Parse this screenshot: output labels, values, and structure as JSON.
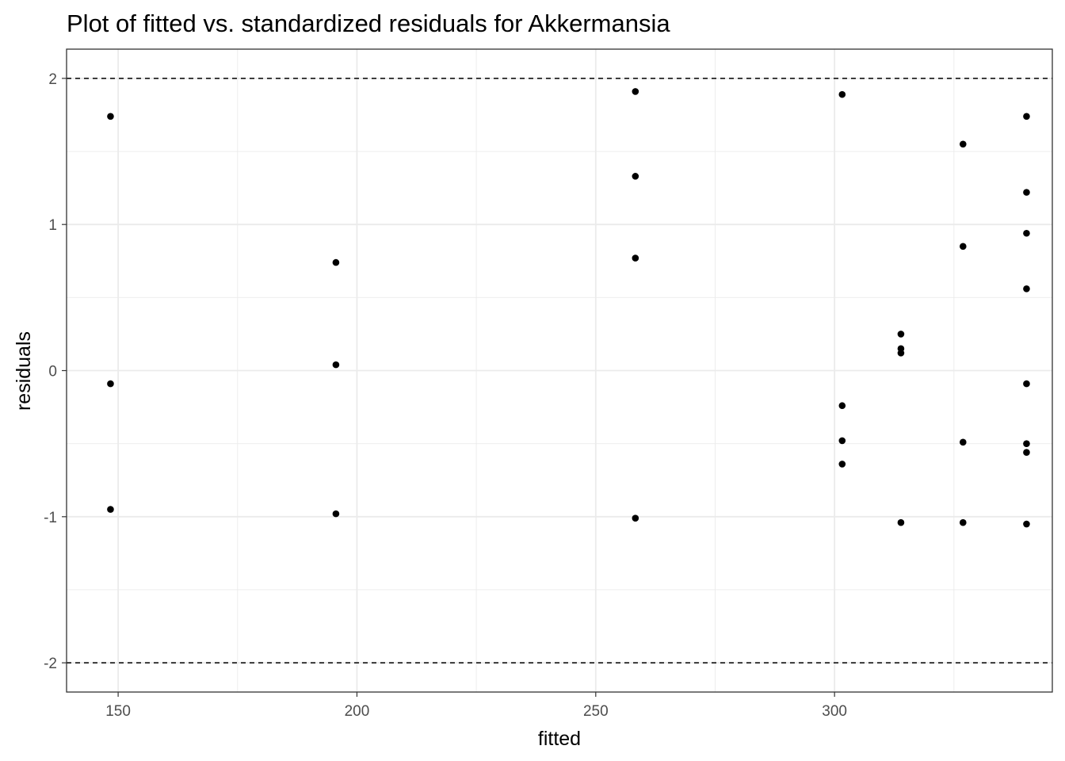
{
  "chart_data": {
    "type": "scatter",
    "title": "Plot of fitted vs. standardized residuals for Akkermansia",
    "xlabel": "fitted",
    "ylabel": "residuals",
    "xlim": [
      139.2,
      345.6
    ],
    "ylim": [
      -2.2,
      2.2
    ],
    "x_ticks": [
      150,
      200,
      250,
      300
    ],
    "x_tick_labels": [
      "150",
      "200",
      "250",
      "300"
    ],
    "x_minor_ticks": [
      175,
      225,
      275,
      325
    ],
    "y_ticks": [
      -2,
      -1,
      0,
      1,
      2
    ],
    "y_tick_labels": [
      "-2",
      "-1",
      "0",
      "1",
      "2"
    ],
    "y_minor_ticks": [
      -1.5,
      -0.5,
      0.5,
      1.5
    ],
    "reference_lines": [
      -2,
      2
    ],
    "grid": true,
    "colors": {
      "points": "#000000",
      "grid": "#ebebeb",
      "panel_border": "#333333",
      "reference_line": "#000000"
    },
    "x": [
      148.4,
      148.4,
      148.4,
      195.6,
      195.6,
      195.6,
      258.3,
      258.3,
      258.3,
      258.3,
      301.6,
      301.6,
      301.6,
      301.6,
      313.9,
      313.9,
      313.9,
      313.9,
      326.9,
      326.9,
      326.9,
      326.9,
      340.2,
      340.2,
      340.2,
      340.2,
      340.2,
      340.2,
      340.2,
      340.2
    ],
    "y": [
      1.74,
      -0.09,
      -0.95,
      0.74,
      0.04,
      -0.98,
      1.91,
      1.33,
      0.77,
      -1.01,
      1.89,
      -0.24,
      -0.48,
      -0.64,
      0.25,
      0.15,
      0.12,
      -1.04,
      1.55,
      0.85,
      -0.49,
      -1.04,
      1.74,
      1.22,
      0.94,
      0.56,
      -0.09,
      -0.5,
      -0.56,
      -1.05
    ]
  }
}
